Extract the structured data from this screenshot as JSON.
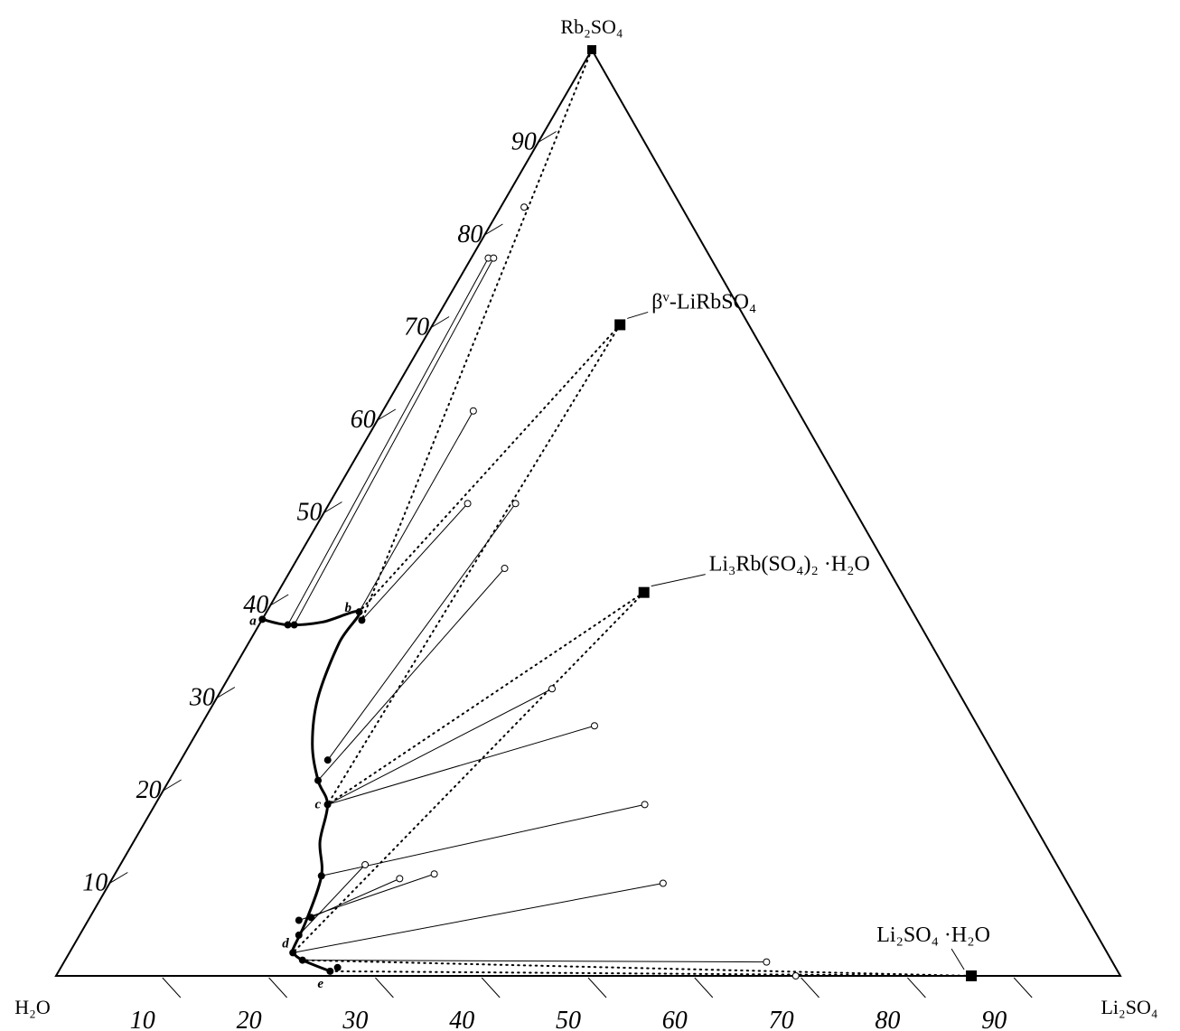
{
  "chart_data": {
    "type": "scatter",
    "subtype": "ternary-phase-diagram",
    "vertices": {
      "bottom_left": "H₂O",
      "bottom_right": "Li₂SO₄",
      "top": "Rb₂SO₄"
    },
    "left_axis_ticks": [
      "10",
      "20",
      "30",
      "40",
      "50",
      "60",
      "70",
      "80",
      "90"
    ],
    "bottom_axis_ticks": [
      "10",
      "20",
      "30",
      "40",
      "50",
      "60",
      "70",
      "80",
      "90"
    ],
    "solid_phases": [
      {
        "label": "β",
        "label_sup": "v",
        "label_rest": "-LiRbSO₄",
        "li2so4": 17.6,
        "rb2so4": 70.3
      },
      {
        "label": "Li₃Rb(SO₄)₂ ·H₂O",
        "li2so4": 34.4,
        "rb2so4": 41.4
      },
      {
        "label": "Li₂SO₄ ·H₂O",
        "li2so4": 86.0,
        "rb2so4": 0.0
      }
    ],
    "invariant_points": [
      {
        "label": "a",
        "li2so4": 0.0,
        "rb2so4": 38.5
      },
      {
        "label": "b",
        "li2so4": 8.7,
        "rb2so4": 39.3
      },
      {
        "label": "c",
        "li2so4": 16.2,
        "rb2so4": 18.5
      },
      {
        "label": "d",
        "li2so4": 21.0,
        "rb2so4": 2.5
      },
      {
        "label": "e",
        "li2so4": 25.5,
        "rb2so4": 0.5
      }
    ],
    "solubility_points": [
      {
        "li2so4": 0.0,
        "rb2so4": 38.5
      },
      {
        "li2so4": 2.7,
        "rb2so4": 37.9
      },
      {
        "li2so4": 3.3,
        "rb2so4": 37.9
      },
      {
        "li2so4": 8.7,
        "rb2so4": 39.3
      },
      {
        "li2so4": 9.4,
        "rb2so4": 38.4
      },
      {
        "li2so4": 13.8,
        "rb2so4": 23.3
      },
      {
        "li2so4": 14.0,
        "rb2so4": 21.1
      },
      {
        "li2so4": 16.2,
        "rb2so4": 18.5
      },
      {
        "li2so4": 19.5,
        "rb2so4": 10.8
      },
      {
        "li2so4": 19.8,
        "rb2so4": 6.0
      },
      {
        "li2so4": 20.8,
        "rb2so4": 6.3
      },
      {
        "li2so4": 20.6,
        "rb2so4": 4.4
      },
      {
        "li2so4": 21.0,
        "rb2so4": 2.5
      },
      {
        "li2so4": 22.3,
        "rb2so4": 1.7
      },
      {
        "li2so4": 25.5,
        "rb2so4": 0.5
      },
      {
        "li2so4": 26.0,
        "rb2so4": 0.9
      }
    ],
    "solubility_curve": [
      {
        "li2so4": 0.0,
        "rb2so4": 38.5
      },
      {
        "li2so4": 2.7,
        "rb2so4": 37.9
      },
      {
        "li2so4": 5.8,
        "rb2so4": 38.2
      },
      {
        "li2so4": 8.7,
        "rb2so4": 39.3
      },
      {
        "li2so4": 8.5,
        "rb2so4": 36.0
      },
      {
        "li2so4": 9.5,
        "rb2so4": 30.0
      },
      {
        "li2so4": 11.5,
        "rb2so4": 25.0
      },
      {
        "li2so4": 14.0,
        "rb2so4": 21.1
      },
      {
        "li2so4": 16.2,
        "rb2so4": 18.5
      },
      {
        "li2so4": 17.5,
        "rb2so4": 14.5
      },
      {
        "li2so4": 19.5,
        "rb2so4": 10.8
      },
      {
        "li2so4": 20.5,
        "rb2so4": 6.0
      },
      {
        "li2so4": 20.8,
        "rb2so4": 3.0
      },
      {
        "li2so4": 21.0,
        "rb2so4": 2.5
      },
      {
        "li2so4": 22.3,
        "rb2so4": 1.7
      },
      {
        "li2so4": 25.5,
        "rb2so4": 0.5
      }
    ],
    "wet_residue_points": [
      {
        "li2so4": 2.2,
        "rb2so4": 83.0
      },
      {
        "li2so4": 1.6,
        "rb2so4": 77.5
      },
      {
        "li2so4": 2.1,
        "rb2so4": 77.5
      },
      {
        "li2so4": 8.5,
        "rb2so4": 61.0
      },
      {
        "li2so4": 13.0,
        "rb2so4": 51.0
      },
      {
        "li2so4": 17.5,
        "rb2so4": 51.0
      },
      {
        "li2so4": 20.0,
        "rb2so4": 44.0
      },
      {
        "li2so4": 31.0,
        "rb2so4": 31.0
      },
      {
        "li2so4": 37.0,
        "rb2so4": 27.0
      },
      {
        "li2so4": 46.0,
        "rb2so4": 18.5
      },
      {
        "li2so4": 23.0,
        "rb2so4": 12.0
      },
      {
        "li2so4": 27.0,
        "rb2so4": 10.5
      },
      {
        "li2so4": 30.0,
        "rb2so4": 11.0
      },
      {
        "li2so4": 52.0,
        "rb2so4": 10.0
      },
      {
        "li2so4": 66.0,
        "rb2so4": 1.5
      },
      {
        "li2so4": 69.5,
        "rb2so4": 0.0
      }
    ],
    "tie_lines": [
      {
        "from": {
          "li2so4": 2.7,
          "rb2so4": 37.9
        },
        "to": {
          "li2so4": 1.6,
          "rb2so4": 77.5
        }
      },
      {
        "from": {
          "li2so4": 3.3,
          "rb2so4": 37.9
        },
        "to": {
          "li2so4": 2.1,
          "rb2so4": 77.5
        }
      },
      {
        "from": {
          "li2so4": 8.7,
          "rb2so4": 39.3
        },
        "to": {
          "li2so4": 8.5,
          "rb2so4": 61.0
        }
      },
      {
        "from": {
          "li2so4": 9.4,
          "rb2so4": 38.4
        },
        "to": {
          "li2so4": 13.0,
          "rb2so4": 51.0
        }
      },
      {
        "from": {
          "li2so4": 13.8,
          "rb2so4": 23.3
        },
        "to": {
          "li2so4": 17.5,
          "rb2so4": 51.0
        }
      },
      {
        "from": {
          "li2so4": 14.0,
          "rb2so4": 21.1
        },
        "to": {
          "li2so4": 20.0,
          "rb2so4": 44.0
        }
      },
      {
        "from": {
          "li2so4": 16.2,
          "rb2so4": 18.5
        },
        "to": {
          "li2so4": 31.0,
          "rb2so4": 31.0
        }
      },
      {
        "from": {
          "li2so4": 16.2,
          "rb2so4": 18.5
        },
        "to": {
          "li2so4": 37.0,
          "rb2so4": 27.0
        }
      },
      {
        "from": {
          "li2so4": 19.5,
          "rb2so4": 10.8
        },
        "to": {
          "li2so4": 46.0,
          "rb2so4": 18.5
        }
      },
      {
        "from": {
          "li2so4": 19.8,
          "rb2so4": 6.0
        },
        "to": {
          "li2so4": 30.0,
          "rb2so4": 11.0
        }
      },
      {
        "from": {
          "li2so4": 20.8,
          "rb2so4": 6.3
        },
        "to": {
          "li2so4": 27.0,
          "rb2so4": 10.5
        }
      },
      {
        "from": {
          "li2so4": 20.6,
          "rb2so4": 4.4
        },
        "to": {
          "li2so4": 23.0,
          "rb2so4": 12.0
        }
      },
      {
        "from": {
          "li2so4": 21.0,
          "rb2so4": 2.5
        },
        "to": {
          "li2so4": 52.0,
          "rb2so4": 10.0
        }
      },
      {
        "from": {
          "li2so4": 22.3,
          "rb2so4": 1.7
        },
        "to": {
          "li2so4": 66.0,
          "rb2so4": 1.5
        }
      }
    ],
    "dotted_lines": [
      {
        "from": {
          "li2so4": 0.0,
          "rb2so4": 100.0
        },
        "to": {
          "li2so4": 9.4,
          "rb2so4": 38.4
        }
      },
      {
        "from": {
          "li2so4": 17.6,
          "rb2so4": 70.3
        },
        "to": {
          "li2so4": 8.7,
          "rb2so4": 39.3
        }
      },
      {
        "from": {
          "li2so4": 17.6,
          "rb2so4": 70.3
        },
        "to": {
          "li2so4": 16.2,
          "rb2so4": 18.5
        }
      },
      {
        "from": {
          "li2so4": 34.4,
          "rb2so4": 41.4
        },
        "to": {
          "li2so4": 16.2,
          "rb2so4": 18.5
        }
      },
      {
        "from": {
          "li2so4": 34.4,
          "rb2so4": 41.4
        },
        "to": {
          "li2so4": 21.0,
          "rb2so4": 2.5
        }
      },
      {
        "from": {
          "li2so4": 86.0,
          "rb2so4": 0.0
        },
        "to": {
          "li2so4": 22.3,
          "rb2so4": 1.7
        }
      },
      {
        "from": {
          "li2so4": 86.0,
          "rb2so4": 0.0
        },
        "to": {
          "li2so4": 25.5,
          "rb2so4": 0.5
        }
      }
    ]
  }
}
